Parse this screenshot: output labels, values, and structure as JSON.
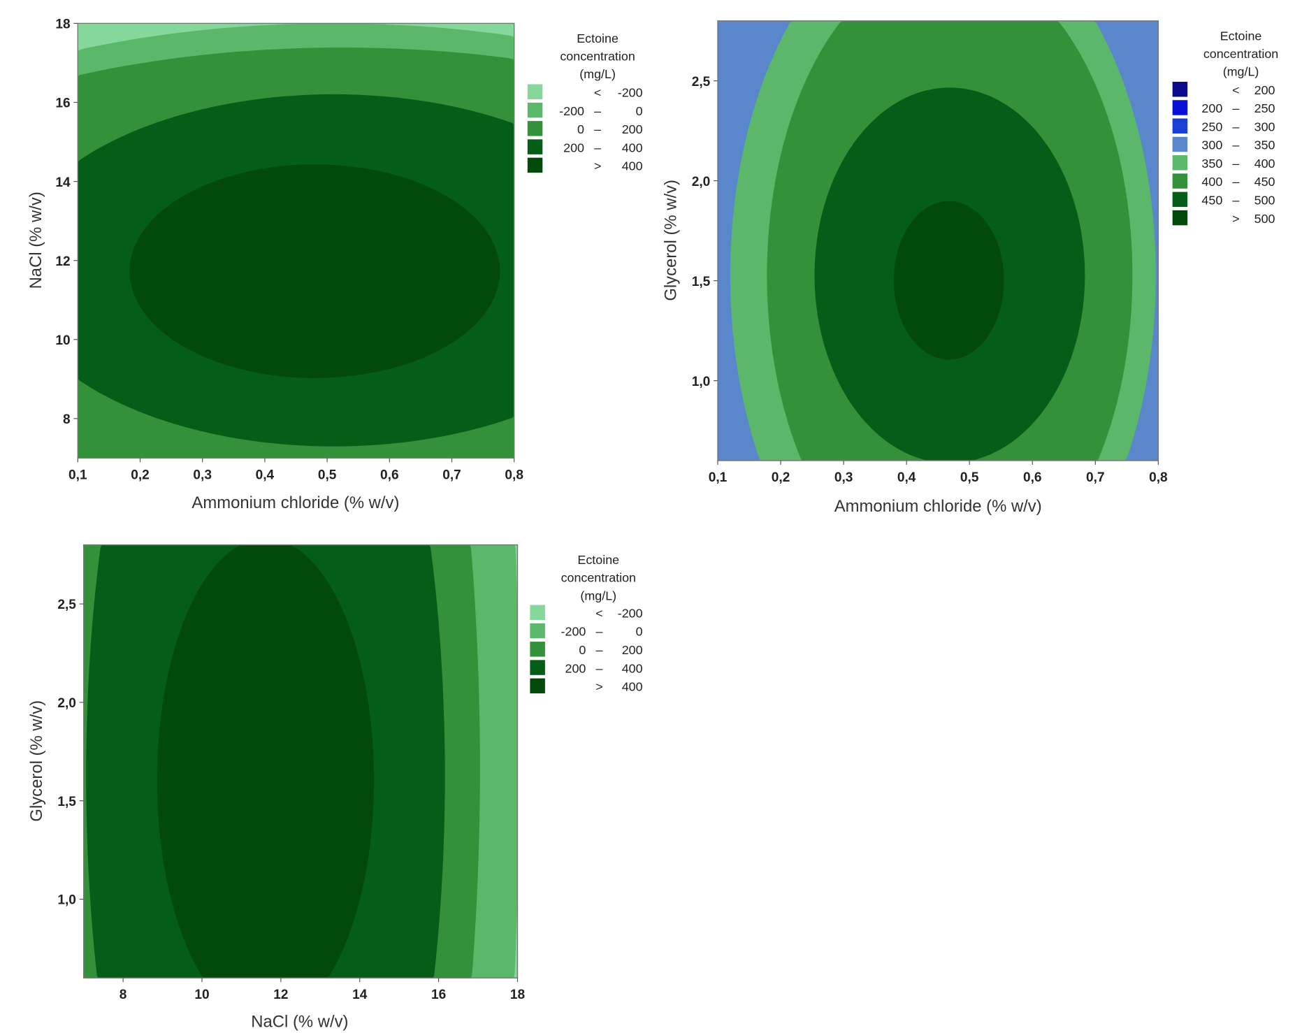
{
  "chart_data": [
    {
      "type": "contour",
      "xlabel": "Ammonium chloride (% w/v)",
      "ylabel": "NaCl (% w/v)",
      "xlim": [
        0.1,
        0.8
      ],
      "ylim": [
        7,
        18
      ],
      "x_ticks": [
        {
          "v": 0.1,
          "t": "0,1"
        },
        {
          "v": 0.2,
          "t": "0,2"
        },
        {
          "v": 0.3,
          "t": "0,3"
        },
        {
          "v": 0.4,
          "t": "0,4"
        },
        {
          "v": 0.5,
          "t": "0,5"
        },
        {
          "v": 0.6,
          "t": "0,6"
        },
        {
          "v": 0.7,
          "t": "0,7"
        },
        {
          "v": 0.8,
          "t": "0,8"
        }
      ],
      "y_ticks": [
        {
          "v": 8,
          "t": "8"
        },
        {
          "v": 10,
          "t": "10"
        },
        {
          "v": 12,
          "t": "12"
        },
        {
          "v": 14,
          "t": "14"
        },
        {
          "v": 16,
          "t": "16"
        },
        {
          "v": 18,
          "t": "18"
        }
      ],
      "legend": {
        "title": [
          "Ectoine",
          "concentration",
          "(mg/L)"
        ],
        "entries": [
          {
            "low": "",
            "sep": "<",
            "high": "-200",
            "color": "#86d89a"
          },
          {
            "low": "-200",
            "sep": "–",
            "high": "0",
            "color": "#5bb86a"
          },
          {
            "low": "0",
            "sep": "–",
            "high": "200",
            "color": "#33913a"
          },
          {
            "low": "200",
            "sep": "–",
            "high": "400",
            "color": "#055e18"
          },
          {
            "low": "",
            "sep": ">",
            "high": "400",
            "color": "#024a0a"
          }
        ]
      },
      "optimum": {
        "x": 0.47,
        "y": 11.8
      }
    },
    {
      "type": "contour",
      "xlabel": "Ammonium chloride (% w/v)",
      "ylabel": "Glycerol (% w/v)",
      "xlim": [
        0.1,
        0.8
      ],
      "ylim": [
        0.6,
        2.8
      ],
      "x_ticks": [
        {
          "v": 0.1,
          "t": "0,1"
        },
        {
          "v": 0.2,
          "t": "0,2"
        },
        {
          "v": 0.3,
          "t": "0,3"
        },
        {
          "v": 0.4,
          "t": "0,4"
        },
        {
          "v": 0.5,
          "t": "0,5"
        },
        {
          "v": 0.6,
          "t": "0,6"
        },
        {
          "v": 0.7,
          "t": "0,7"
        },
        {
          "v": 0.8,
          "t": "0,8"
        }
      ],
      "y_ticks": [
        {
          "v": 1.0,
          "t": "1,0"
        },
        {
          "v": 1.5,
          "t": "1,5"
        },
        {
          "v": 2.0,
          "t": "2,0"
        },
        {
          "v": 2.5,
          "t": "2,5"
        }
      ],
      "legend": {
        "title": [
          "Ectoine",
          "concentration",
          "(mg/L)"
        ],
        "entries": [
          {
            "low": "",
            "sep": "<",
            "high": "200",
            "color": "#0a0a8a"
          },
          {
            "low": "200",
            "sep": "–",
            "high": "250",
            "color": "#0a10d8"
          },
          {
            "low": "250",
            "sep": "–",
            "high": "300",
            "color": "#1a3fd4"
          },
          {
            "low": "300",
            "sep": "–",
            "high": "350",
            "color": "#5a86cc"
          },
          {
            "low": "350",
            "sep": "–",
            "high": "400",
            "color": "#5bb86a"
          },
          {
            "low": "400",
            "sep": "–",
            "high": "450",
            "color": "#33913a"
          },
          {
            "low": "450",
            "sep": "–",
            "high": "500",
            "color": "#055e18"
          },
          {
            "low": "",
            "sep": ">",
            "high": "500",
            "color": "#024a0a"
          }
        ]
      },
      "optimum": {
        "x": 0.47,
        "y": 1.5
      }
    },
    {
      "type": "contour",
      "xlabel": "NaCl (% w/v)",
      "ylabel": "Glycerol (% w/v)",
      "xlim": [
        7,
        18
      ],
      "ylim": [
        0.6,
        2.8
      ],
      "x_ticks": [
        {
          "v": 8,
          "t": "8"
        },
        {
          "v": 10,
          "t": "10"
        },
        {
          "v": 12,
          "t": "12"
        },
        {
          "v": 14,
          "t": "14"
        },
        {
          "v": 16,
          "t": "16"
        },
        {
          "v": 18,
          "t": "18"
        }
      ],
      "y_ticks": [
        {
          "v": 1.0,
          "t": "1,0"
        },
        {
          "v": 1.5,
          "t": "1,5"
        },
        {
          "v": 2.0,
          "t": "2,0"
        },
        {
          "v": 2.5,
          "t": "2,5"
        }
      ],
      "legend": {
        "title": [
          "Ectoine",
          "concentration",
          "(mg/L)"
        ],
        "entries": [
          {
            "low": "",
            "sep": "<",
            "high": "-200",
            "color": "#86d89a"
          },
          {
            "low": "-200",
            "sep": "–",
            "high": "0",
            "color": "#5bb86a"
          },
          {
            "low": "0",
            "sep": "–",
            "high": "200",
            "color": "#33913a"
          },
          {
            "low": "200",
            "sep": "–",
            "high": "400",
            "color": "#055e18"
          },
          {
            "low": "",
            "sep": ">",
            "high": "400",
            "color": "#024a0a"
          }
        ]
      },
      "optimum": {
        "x": 12,
        "y": 1.6
      }
    }
  ]
}
